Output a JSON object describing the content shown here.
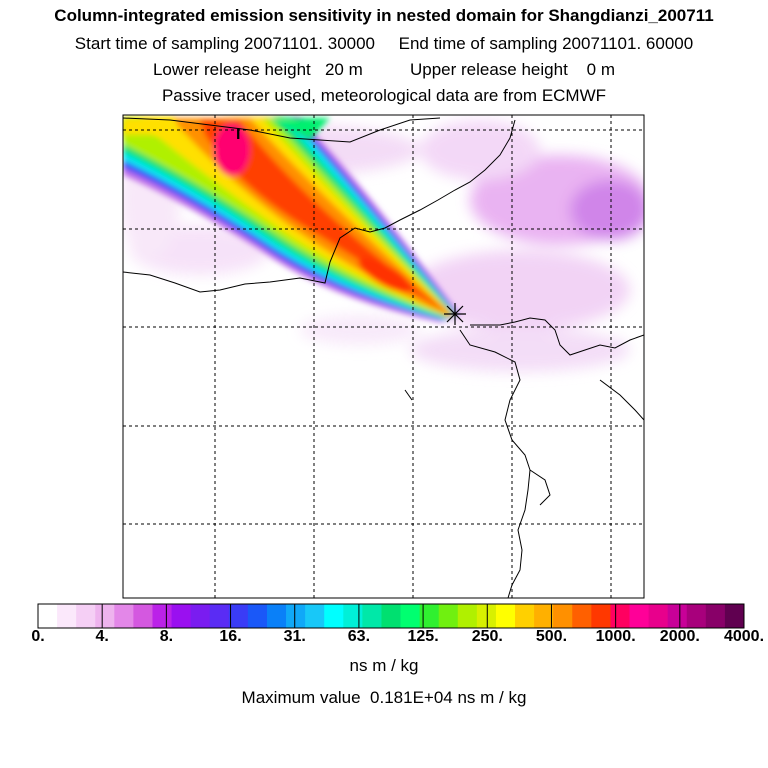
{
  "title": "Column-integrated emission sensitivity in nested domain for Shangdianzi_200711",
  "subtitle_sampling": "Start time of sampling 20071101. 30000     End time of sampling 20071101. 60000",
  "subtitle_release": "Lower release height   20 m          Upper release height    0 m",
  "subtitle_tracer": "Passive tracer used, meteorological data are from ECMWF",
  "chart_data": {
    "type": "heatmap",
    "colorbar": {
      "tick_labels": [
        "0.",
        "4.",
        "8.",
        "16.",
        "31.",
        "63.",
        "125.",
        "250.",
        "500.",
        "1000.",
        "2000.",
        "4000."
      ],
      "colors": [
        "#ffffff",
        "#fbe8fb",
        "#f5cff5",
        "#eeb3ee",
        "#e387e8",
        "#d458e0",
        "#bb22e8",
        "#9a10f0",
        "#7a1cf0",
        "#5a2cf4",
        "#3a3cf6",
        "#1a58f8",
        "#0a80f8",
        "#10a8f8",
        "#18c8f8",
        "#00ffff",
        "#00f0d8",
        "#00e8a8",
        "#00e070",
        "#00ff70",
        "#30f030",
        "#70f010",
        "#b0f000",
        "#d8f000",
        "#ffff00",
        "#ffd000",
        "#ffb000",
        "#ff9000",
        "#ff6000",
        "#ff3800",
        "#ff0060",
        "#ff0098",
        "#e8008c",
        "#c80098",
        "#a8007c",
        "#880068",
        "#600050"
      ],
      "units": "ns m / kg"
    },
    "maximum_value_text": "Maximum value  0.181E+04 ns m / kg",
    "receptor": "Shangdianzi",
    "max_marker_label": "I",
    "grid": true
  }
}
